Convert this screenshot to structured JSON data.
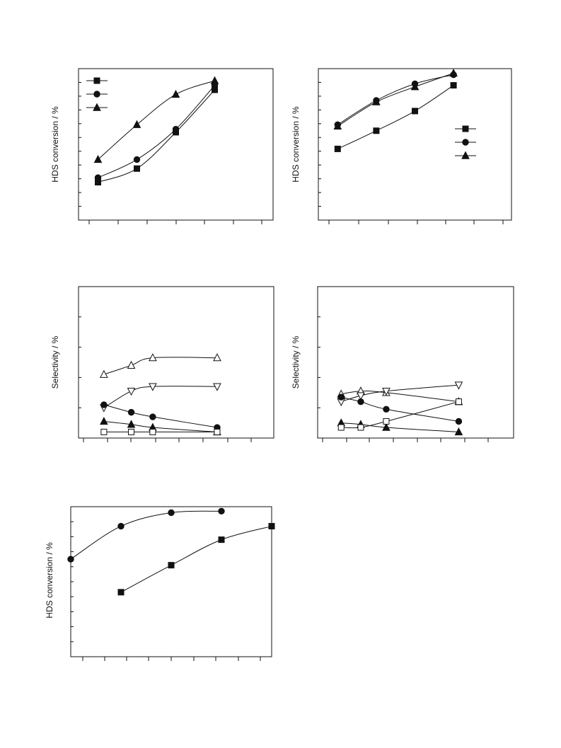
{
  "chart_data": [
    {
      "type": "line",
      "ylabel": "HDS conversion / %",
      "xlim": [
        0,
        10
      ],
      "ylim": [
        0,
        100
      ],
      "x": [
        1,
        3,
        5,
        7
      ],
      "grid": false,
      "legend": "top-left",
      "series": [
        {
          "marker": "square-filled",
          "values": [
            25,
            34,
            58,
            86
          ]
        },
        {
          "marker": "circle-filled",
          "values": [
            28,
            40,
            60,
            89
          ]
        },
        {
          "marker": "triangle-up-filled",
          "values": [
            40,
            63,
            83,
            92
          ]
        }
      ]
    },
    {
      "type": "line",
      "ylabel": "HDS conversion / %",
      "xlim": [
        0,
        10
      ],
      "ylim": [
        0,
        100
      ],
      "x": [
        1,
        3,
        5,
        7
      ],
      "grid": false,
      "legend": "right",
      "series": [
        {
          "marker": "square-filled",
          "values": [
            47,
            59,
            72,
            89
          ]
        },
        {
          "marker": "circle-filled",
          "values": [
            63,
            79,
            90,
            96
          ]
        },
        {
          "marker": "triangle-up-filled",
          "values": [
            62,
            78,
            88,
            97
          ]
        }
      ]
    },
    {
      "type": "line",
      "ylabel": "Selectivity / %",
      "xlim": [
        0,
        10
      ],
      "ylim": [
        0,
        100
      ],
      "x": [
        1.3,
        2.7,
        3.8,
        7.1
      ],
      "grid": false,
      "series": [
        {
          "marker": "triangle-up-open",
          "values": [
            42,
            48,
            53,
            53
          ]
        },
        {
          "marker": "triangle-down-open",
          "values": [
            20,
            31,
            34,
            34
          ]
        },
        {
          "marker": "circle-filled",
          "values": [
            22,
            17,
            14,
            7
          ]
        },
        {
          "marker": "triangle-up-filled",
          "values": [
            11,
            9,
            7,
            4
          ]
        },
        {
          "marker": "square-open",
          "values": [
            4,
            4,
            4,
            4
          ]
        }
      ]
    },
    {
      "type": "line",
      "ylabel": "Selectivity / %",
      "xlim": [
        0,
        10
      ],
      "ylim": [
        0,
        100
      ],
      "x": [
        1.2,
        2.2,
        3.5,
        7.2
      ],
      "grid": false,
      "series": [
        {
          "marker": "triangle-up-open",
          "values": [
            29,
            31,
            30,
            24
          ]
        },
        {
          "marker": "triangle-down-open",
          "values": [
            24,
            28,
            31,
            35
          ]
        },
        {
          "marker": "circle-filled",
          "values": [
            27,
            24,
            19,
            11
          ]
        },
        {
          "marker": "triangle-up-filled",
          "values": [
            10,
            9,
            7,
            4
          ]
        },
        {
          "marker": "square-open",
          "values": [
            7,
            7,
            11,
            24
          ]
        }
      ]
    },
    {
      "type": "line",
      "ylabel": "HDS conversion / %",
      "xlim": [
        0,
        8
      ],
      "ylim": [
        0,
        100
      ],
      "grid": false,
      "series": [
        {
          "marker": "circle-filled",
          "x": [
            0,
            2,
            4,
            6
          ],
          "values": [
            65,
            87,
            96,
            97
          ]
        },
        {
          "marker": "square-filled",
          "x": [
            2,
            4,
            6,
            8
          ],
          "values": [
            43,
            61,
            78,
            87
          ]
        }
      ]
    }
  ]
}
